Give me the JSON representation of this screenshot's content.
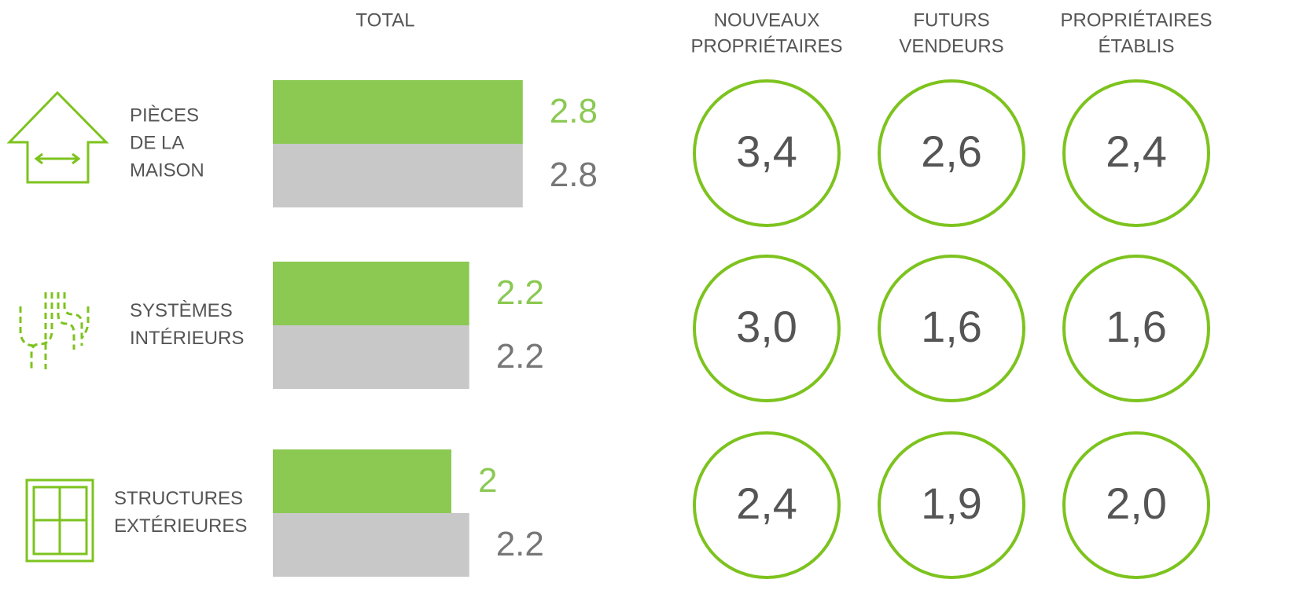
{
  "chart_data": {
    "type": "bar",
    "total_label": "TOTAL",
    "categories": [
      [
        "PIÈCES",
        "DE LA",
        "MAISON"
      ],
      [
        "SYSTÈMES",
        "INTÉRIEURS"
      ],
      [
        "STRUCTURES",
        "EXTÉRIEURES"
      ]
    ],
    "series": [
      {
        "color": "#8bc953",
        "values": [
          2.8,
          2.2,
          2.0
        ]
      },
      {
        "color": "#c8c8c8",
        "values": [
          2.8,
          2.2,
          2.2
        ]
      }
    ],
    "groups": [
      {
        "name": [
          "NOUVEAUX",
          "PROPRIÉTAIRES"
        ],
        "values": [
          3.4,
          3.0,
          2.4
        ],
        "value_labels": [
          "3,4",
          "3,0",
          "2,4"
        ]
      },
      {
        "name": [
          "FUTURS",
          "VENDEURS"
        ],
        "values": [
          2.6,
          1.6,
          1.9
        ],
        "value_labels": [
          "2,6",
          "1,6",
          "1,9"
        ]
      },
      {
        "name": [
          "PROPRIÉTAIRES",
          "ÉTABLIS"
        ],
        "values": [
          2.4,
          1.6,
          2.0
        ],
        "value_labels": [
          "2,4",
          "1,6",
          "2,0"
        ]
      }
    ],
    "circle_color": "#7dc31e"
  }
}
